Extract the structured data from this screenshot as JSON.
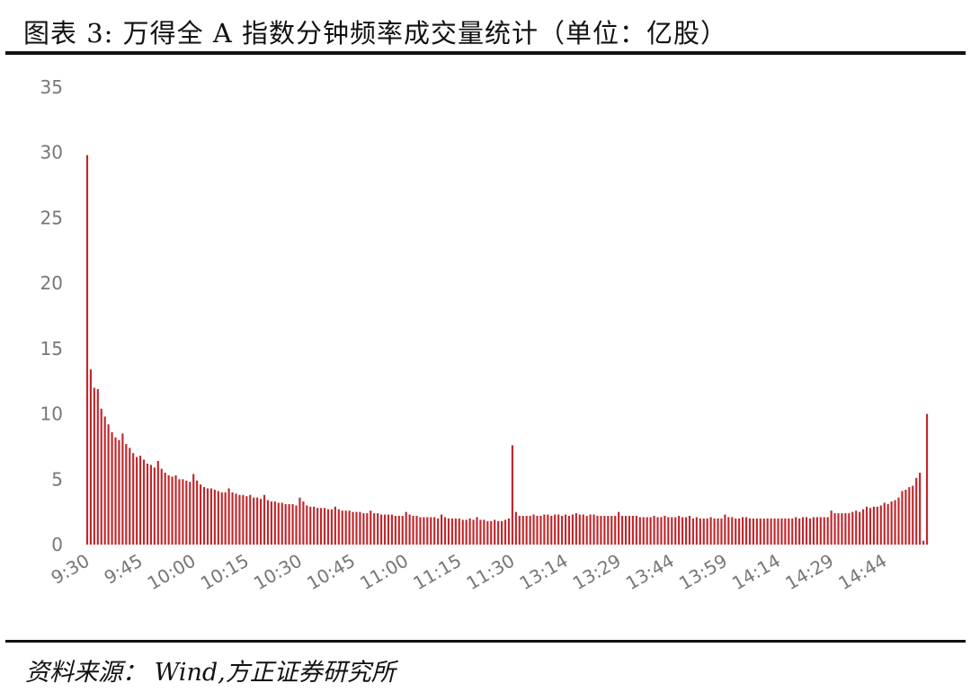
{
  "title": "图表 3:  万得全 A 指数分钟频率成交量统计（单位：亿股）",
  "source": "资料来源：  Wind,方正证券研究所",
  "chart_data": {
    "type": "bar",
    "color": "#c0282d",
    "ylim": [
      0,
      35
    ],
    "yticks": [
      0,
      5,
      10,
      15,
      20,
      25,
      30,
      35
    ],
    "xtick_labels": [
      "9:30",
      "9:45",
      "10:00",
      "10:15",
      "10:30",
      "10:45",
      "11:00",
      "11:15",
      "11:30",
      "13:14",
      "13:29",
      "13:44",
      "13:59",
      "14:14",
      "14:29",
      "14:44"
    ],
    "xtick_index": [
      0,
      15,
      30,
      45,
      60,
      75,
      90,
      105,
      120,
      135,
      150,
      165,
      180,
      195,
      210,
      225
    ],
    "values": [
      29.8,
      13.4,
      12.0,
      11.9,
      10.4,
      9.8,
      9.2,
      8.6,
      8.2,
      8.0,
      8.5,
      7.7,
      7.4,
      7.0,
      6.7,
      6.8,
      6.5,
      6.2,
      6.1,
      5.9,
      6.4,
      5.8,
      5.5,
      5.3,
      5.2,
      5.3,
      5.0,
      5.0,
      4.9,
      4.8,
      5.4,
      4.9,
      4.6,
      4.4,
      4.3,
      4.3,
      4.2,
      4.1,
      4.0,
      4.0,
      4.3,
      4.0,
      3.9,
      3.8,
      3.8,
      3.7,
      3.8,
      3.6,
      3.6,
      3.5,
      3.8,
      3.4,
      3.3,
      3.3,
      3.2,
      3.2,
      3.1,
      3.1,
      3.1,
      3.0,
      3.6,
      3.3,
      3.0,
      2.9,
      2.9,
      2.8,
      2.8,
      2.8,
      2.7,
      2.7,
      2.9,
      2.7,
      2.6,
      2.6,
      2.6,
      2.5,
      2.5,
      2.5,
      2.4,
      2.4,
      2.6,
      2.4,
      2.4,
      2.3,
      2.3,
      2.3,
      2.3,
      2.2,
      2.2,
      2.2,
      2.5,
      2.3,
      2.2,
      2.2,
      2.1,
      2.1,
      2.1,
      2.1,
      2.1,
      2.0,
      2.3,
      2.1,
      2.0,
      2.0,
      2.0,
      2.0,
      1.9,
      1.9,
      2.0,
      1.9,
      2.1,
      1.9,
      1.9,
      1.8,
      1.8,
      1.9,
      1.8,
      1.8,
      1.9,
      2.0,
      7.6,
      2.5,
      2.2,
      2.2,
      2.2,
      2.2,
      2.3,
      2.2,
      2.2,
      2.3,
      2.3,
      2.2,
      2.3,
      2.3,
      2.2,
      2.3,
      2.2,
      2.3,
      2.4,
      2.3,
      2.3,
      2.2,
      2.3,
      2.3,
      2.2,
      2.2,
      2.2,
      2.2,
      2.2,
      2.2,
      2.5,
      2.2,
      2.2,
      2.2,
      2.2,
      2.2,
      2.1,
      2.1,
      2.1,
      2.1,
      2.2,
      2.1,
      2.1,
      2.2,
      2.1,
      2.1,
      2.1,
      2.2,
      2.1,
      2.1,
      2.2,
      2.0,
      2.1,
      2.0,
      2.0,
      2.0,
      2.1,
      2.0,
      2.0,
      2.0,
      2.3,
      2.1,
      2.1,
      2.0,
      2.0,
      2.1,
      2.1,
      2.0,
      2.0,
      2.0,
      2.0,
      2.0,
      2.0,
      2.0,
      2.0,
      2.0,
      2.0,
      2.0,
      2.0,
      2.0,
      2.1,
      2.0,
      2.1,
      2.1,
      2.0,
      2.1,
      2.1,
      2.1,
      2.1,
      2.1,
      2.6,
      2.4,
      2.4,
      2.4,
      2.4,
      2.4,
      2.5,
      2.6,
      2.5,
      2.7,
      2.9,
      2.8,
      2.9,
      2.9,
      3.0,
      3.2,
      3.1,
      3.3,
      3.4,
      3.6,
      4.1,
      4.2,
      4.4,
      4.5,
      5.1,
      5.5,
      0.3,
      10.0
    ]
  }
}
